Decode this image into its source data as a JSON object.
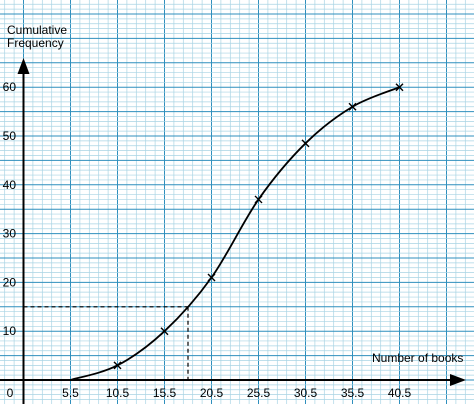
{
  "chart_data": {
    "type": "line",
    "ylabel_line1": "Cumulative",
    "ylabel_line2": "Frequency",
    "xlabel": "Number of books",
    "x_ticks": [
      "5.5",
      "10.5",
      "15.5",
      "20.5",
      "25.5",
      "30.5",
      "35.5",
      "40.5"
    ],
    "y_ticks": [
      "10",
      "20",
      "30",
      "40",
      "50",
      "60"
    ],
    "origin_label": "0",
    "xlim": [
      0.5,
      45.5
    ],
    "ylim": [
      0,
      63
    ],
    "grid": true,
    "series": [
      {
        "points": [
          {
            "x": 5.5,
            "y": 0
          },
          {
            "x": 10.5,
            "y": 3
          },
          {
            "x": 15.5,
            "y": 10
          },
          {
            "x": 20.5,
            "y": 21
          },
          {
            "x": 25.5,
            "y": 37
          },
          {
            "x": 30.5,
            "y": 48.5
          },
          {
            "x": 35.5,
            "y": 56
          },
          {
            "x": 40.5,
            "y": 60
          }
        ]
      }
    ],
    "reading_line": {
      "y": 15,
      "x": 18
    }
  },
  "colors": {
    "grid_minor": "#a9d4e4",
    "grid_major": "#2f8fbd",
    "curve": "#000000",
    "axis": "#000000"
  }
}
